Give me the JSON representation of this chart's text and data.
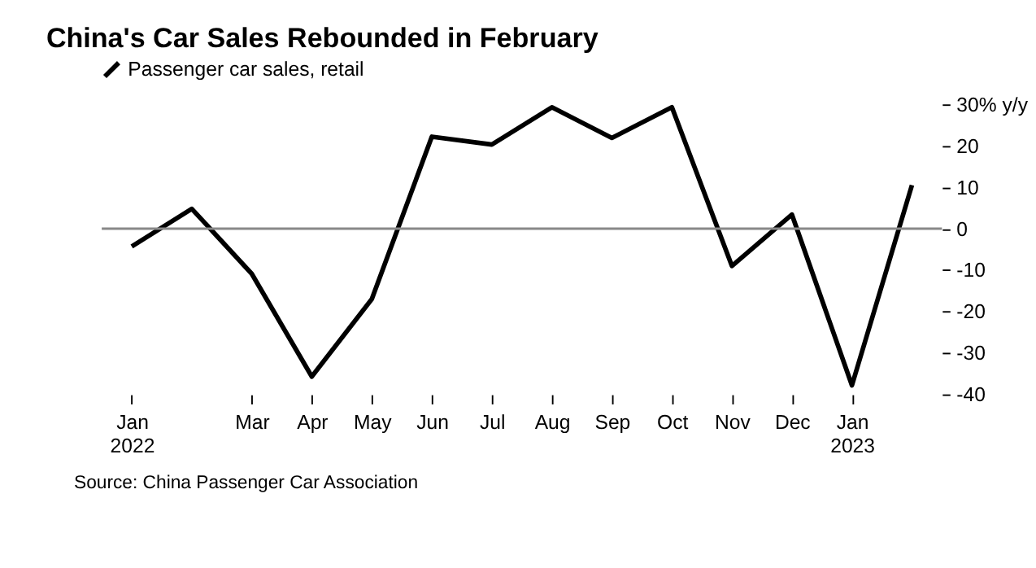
{
  "chart_data": {
    "type": "line",
    "title": "China's Car Sales Rebounded in February",
    "categories": [
      "Jan\n2022",
      null,
      "Mar",
      "Apr",
      "May",
      "Jun",
      "Jul",
      "Aug",
      "Sep",
      "Oct",
      "Nov",
      "Dec",
      "Jan\n2023",
      null
    ],
    "series": [
      {
        "name": "Passenger car sales, retail",
        "color": "#000000",
        "values": [
          -4.3,
          4.8,
          -10.9,
          -35.7,
          -17,
          22.2,
          20.3,
          29.3,
          21.9,
          29.3,
          -9,
          3.4,
          -37.8,
          10.5
        ]
      }
    ],
    "ylim": [
      -40,
      30
    ],
    "yticks": [
      {
        "value": 30,
        "label": "30% y/y"
      },
      20,
      10,
      0,
      -10,
      -20,
      -30,
      -40
    ],
    "ref_lines": [
      {
        "axis": "y",
        "value": 0,
        "color": "#888888"
      }
    ],
    "grid": false,
    "legend": "top left",
    "marker": "none",
    "line_style": "solid",
    "annotations": [
      "Source: China Passenger Car Association"
    ]
  }
}
